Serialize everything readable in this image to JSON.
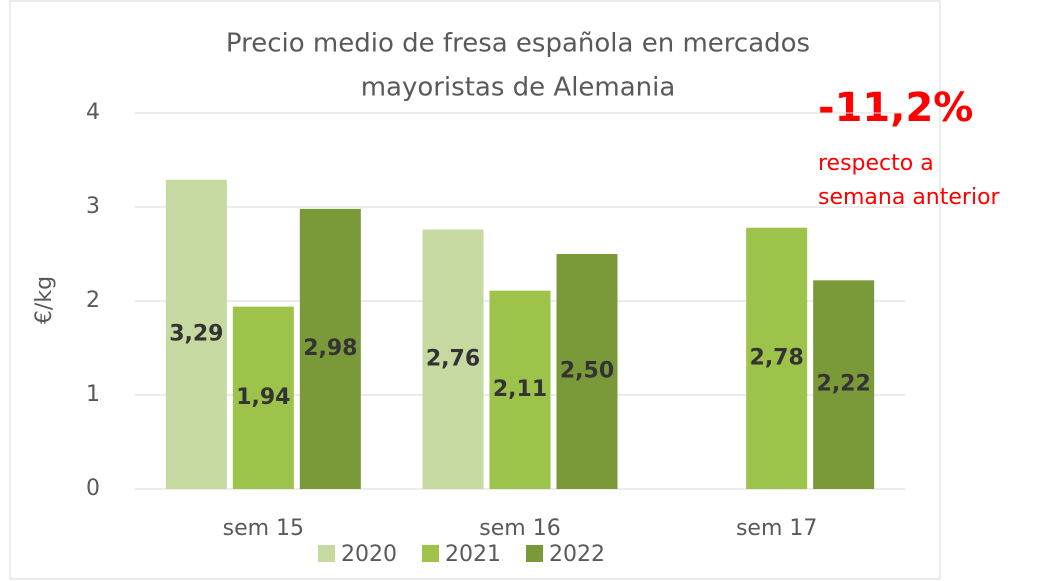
{
  "chart_data": {
    "type": "bar",
    "title": [
      "Precio medio de fresa española en mercados",
      "mayoristas de Alemania"
    ],
    "y_label": "€/kg",
    "categories": [
      "sem 15",
      "sem 16",
      "sem 17"
    ],
    "series": [
      {
        "name": "2020",
        "color": "#c5d9a0",
        "values": [
          3.29,
          2.76,
          null
        ],
        "value_labels": [
          "3,29",
          "2,76",
          null
        ]
      },
      {
        "name": "2021",
        "color": "#9dc34a",
        "values": [
          1.94,
          2.11,
          2.78
        ],
        "value_labels": [
          "1,94",
          "2,11",
          "2,78"
        ]
      },
      {
        "name": "2022",
        "color": "#7a9a3a",
        "values": [
          2.98,
          2.5,
          2.22
        ],
        "value_labels": [
          "2,98",
          "2,50",
          "2,22"
        ]
      }
    ],
    "ylim": [
      0,
      4
    ],
    "yticks": [
      0,
      1,
      2,
      3,
      4
    ],
    "grid": true,
    "legend": "bottom",
    "annotations": [
      "-11,2%",
      "respecto a",
      "semana anterior"
    ]
  }
}
